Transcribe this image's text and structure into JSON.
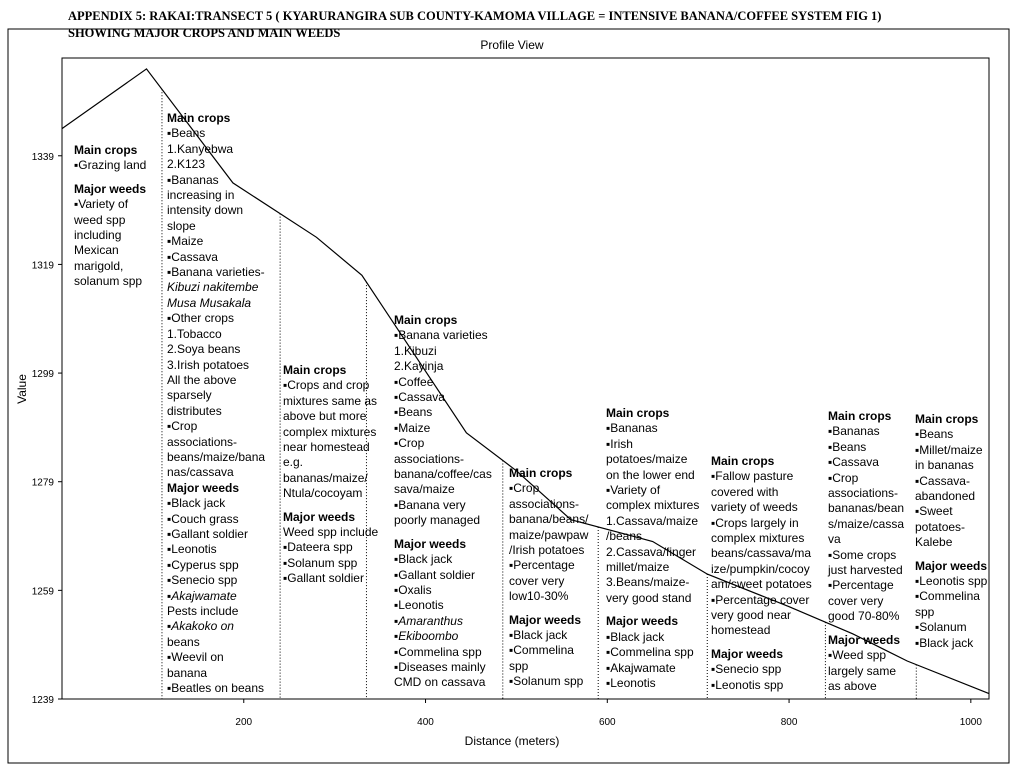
{
  "heading": {
    "line1": "APPENDIX 5: RAKAI:TRANSECT 5 ( KYARURANGIRA SUB COUNTY-KAMOMA VILLAGE = INTENSIVE BANANA/COFFEE SYSTEM FIG 1)",
    "line2": "SHOWING MAJOR CROPS AND MAIN WEEDS"
  },
  "chart_data": {
    "type": "line",
    "title": "Profile View",
    "xlabel": "Distance (meters)",
    "ylabel": "Value",
    "xlim": [
      0,
      1020
    ],
    "ylim": [
      1239,
      1357
    ],
    "x_ticks": [
      200,
      400,
      600,
      800,
      1000
    ],
    "x_tick_labels": [
      "200",
      "400",
      "600",
      "800",
      "1000"
    ],
    "y_ticks": [
      1239,
      1259,
      1279,
      1299,
      1319,
      1339
    ],
    "y_tick_labels": [
      "1239",
      "1259",
      "1279",
      "1299",
      "1319",
      "1339"
    ],
    "grid": false,
    "series": [
      {
        "x": [
          0,
          93,
          188,
          280,
          330,
          445,
          500,
          560,
          650,
          710,
          800,
          870,
          930,
          1020
        ],
        "y": [
          1344,
          1355,
          1334,
          1324,
          1317,
          1288,
          1281,
          1272,
          1268,
          1262,
          1256,
          1251,
          1246,
          1240
        ]
      }
    ],
    "zone_boundaries_x": [
      110,
      240,
      335,
      485,
      590,
      710,
      840,
      940
    ],
    "color": "#000000"
  },
  "zones": [
    {
      "lines": [
        {
          "t": "Main crops",
          "s": "hd"
        },
        {
          "t": "▪Grazing land",
          "s": "it"
        },
        {
          "t": "",
          "s": "gap"
        },
        {
          "t": "Major weeds",
          "s": "hd"
        },
        {
          "t": "▪Variety of",
          "s": "it"
        },
        {
          "t": "weed spp",
          "s": "it"
        },
        {
          "t": "including",
          "s": "it"
        },
        {
          "t": "Mexican",
          "s": "it"
        },
        {
          "t": "marigold,",
          "s": "it"
        },
        {
          "t": "solanum spp",
          "s": "it"
        }
      ]
    },
    {
      "lines": [
        {
          "t": "Main crops",
          "s": "hd"
        },
        {
          "t": "▪Beans",
          "s": "it"
        },
        {
          "t": "1.Kanyebwa",
          "s": "it"
        },
        {
          "t": "2.K123",
          "s": "it"
        },
        {
          "t": "▪Bananas",
          "s": "it"
        },
        {
          "t": "increasing in",
          "s": "it"
        },
        {
          "t": "intensity down",
          "s": "it"
        },
        {
          "t": "slope",
          "s": "it"
        },
        {
          "t": "▪Maize",
          "s": "it"
        },
        {
          "t": "▪Cassava",
          "s": "it"
        },
        {
          "t": "▪Banana varieties-",
          "s": "it"
        },
        {
          "t": "Kibuzi nakitembe",
          "s": "em"
        },
        {
          "t": "Musa Musakala",
          "s": "em"
        },
        {
          "t": "▪Other crops",
          "s": "it"
        },
        {
          "t": "1.Tobacco",
          "s": "it"
        },
        {
          "t": "2.Soya beans",
          "s": "it"
        },
        {
          "t": "3.Irish potatoes",
          "s": "it"
        },
        {
          "t": "All the above",
          "s": "it"
        },
        {
          "t": "sparsely",
          "s": "it"
        },
        {
          "t": "distributes",
          "s": "it"
        },
        {
          "t": "▪Crop",
          "s": "it"
        },
        {
          "t": "associations-",
          "s": "it"
        },
        {
          "t": "beans/maize/bana",
          "s": "it"
        },
        {
          "t": "nas/cassava",
          "s": "it"
        },
        {
          "t": "Major weeds",
          "s": "hd"
        },
        {
          "t": "▪Black jack",
          "s": "it"
        },
        {
          "t": "▪Couch grass",
          "s": "it"
        },
        {
          "t": "▪Gallant soldier",
          "s": "it"
        },
        {
          "t": "▪Leonotis",
          "s": "it"
        },
        {
          "t": "▪Cyperus spp",
          "s": "it"
        },
        {
          "t": "▪Senecio spp",
          "s": "it"
        },
        {
          "t": "▪Akajwamate",
          "s": "em"
        },
        {
          "t": "Pests include",
          "s": "it"
        },
        {
          "t": "▪Akakoko on",
          "s": "em"
        },
        {
          "t": "beans",
          "s": "it"
        },
        {
          "t": "▪Weevil on",
          "s": "it"
        },
        {
          "t": "banana",
          "s": "it"
        },
        {
          "t": "▪Beatles on beans",
          "s": "it"
        }
      ]
    },
    {
      "lines": [
        {
          "t": "Main crops",
          "s": "hd"
        },
        {
          "t": "▪Crops and crop",
          "s": "it"
        },
        {
          "t": "mixtures same as",
          "s": "it"
        },
        {
          "t": "above but more",
          "s": "it"
        },
        {
          "t": "complex mixtures",
          "s": "it"
        },
        {
          "t": "near homestead",
          "s": "it"
        },
        {
          "t": "e.g.",
          "s": "it"
        },
        {
          "t": "bananas/maize/",
          "s": "it"
        },
        {
          "t": "Ntula/cocoyam",
          "s": "it"
        },
        {
          "t": "",
          "s": "gap"
        },
        {
          "t": "Major weeds",
          "s": "hd"
        },
        {
          "t": "Weed spp include",
          "s": "it"
        },
        {
          "t": "▪Dateera spp",
          "s": "it"
        },
        {
          "t": "▪Solanum spp",
          "s": "it"
        },
        {
          "t": "▪Gallant soldier",
          "s": "it"
        }
      ]
    },
    {
      "lines": [
        {
          "t": "Main crops",
          "s": "hd"
        },
        {
          "t": "▪Banana varieties",
          "s": "it"
        },
        {
          "t": "1.Kibuzi",
          "s": "it"
        },
        {
          "t": "2.Kayinja",
          "s": "it"
        },
        {
          "t": "▪Coffee",
          "s": "it"
        },
        {
          "t": "▪Cassava",
          "s": "it"
        },
        {
          "t": "▪Beans",
          "s": "it"
        },
        {
          "t": "▪Maize",
          "s": "it"
        },
        {
          "t": "▪Crop",
          "s": "it"
        },
        {
          "t": "associations-",
          "s": "it"
        },
        {
          "t": "banana/coffee/cas",
          "s": "it"
        },
        {
          "t": "sava/maize",
          "s": "it"
        },
        {
          "t": "▪Banana very",
          "s": "it"
        },
        {
          "t": "poorly managed",
          "s": "it"
        },
        {
          "t": "",
          "s": "gap"
        },
        {
          "t": "Major weeds",
          "s": "hd"
        },
        {
          "t": "▪Black jack",
          "s": "it"
        },
        {
          "t": "▪Gallant soldier",
          "s": "it"
        },
        {
          "t": "▪Oxalis",
          "s": "it"
        },
        {
          "t": "▪Leonotis",
          "s": "it"
        },
        {
          "t": "▪Amaranthus",
          "s": "em"
        },
        {
          "t": "▪Ekiboombo",
          "s": "em"
        },
        {
          "t": "▪Commelina spp",
          "s": "it"
        },
        {
          "t": "▪Diseases mainly",
          "s": "it"
        },
        {
          "t": "CMD on cassava",
          "s": "it"
        }
      ]
    },
    {
      "lines": [
        {
          "t": "Main crops",
          "s": "hd"
        },
        {
          "t": "▪Crop",
          "s": "it"
        },
        {
          "t": "associations-",
          "s": "it"
        },
        {
          "t": "banana/beans/",
          "s": "it"
        },
        {
          "t": "maize/pawpaw",
          "s": "it"
        },
        {
          "t": "/Irish potatoes",
          "s": "it"
        },
        {
          "t": "▪Percentage",
          "s": "it"
        },
        {
          "t": "cover very",
          "s": "it"
        },
        {
          "t": "low10-30%",
          "s": "it"
        },
        {
          "t": "",
          "s": "gap"
        },
        {
          "t": "Major weeds",
          "s": "hd"
        },
        {
          "t": "▪Black jack",
          "s": "it"
        },
        {
          "t": "▪Commelina",
          "s": "it"
        },
        {
          "t": "spp",
          "s": "it"
        },
        {
          "t": "▪Solanum spp",
          "s": "it"
        }
      ]
    },
    {
      "lines": [
        {
          "t": "Main crops",
          "s": "hd"
        },
        {
          "t": "▪Bananas",
          "s": "it"
        },
        {
          "t": "▪Irish",
          "s": "it"
        },
        {
          "t": "potatoes/maize",
          "s": "it"
        },
        {
          "t": "on the lower end",
          "s": "it"
        },
        {
          "t": "▪Variety of",
          "s": "it"
        },
        {
          "t": "complex mixtures",
          "s": "it"
        },
        {
          "t": "1.Cassava/maize",
          "s": "it"
        },
        {
          "t": "/beans",
          "s": "it"
        },
        {
          "t": "2.Cassava/finger",
          "s": "it"
        },
        {
          "t": "millet/maize",
          "s": "it"
        },
        {
          "t": "3.Beans/maize-",
          "s": "it"
        },
        {
          "t": "very good stand",
          "s": "it"
        },
        {
          "t": "",
          "s": "gap"
        },
        {
          "t": "Major weeds",
          "s": "hd"
        },
        {
          "t": "▪Black jack",
          "s": "it"
        },
        {
          "t": "▪Commelina spp",
          "s": "it"
        },
        {
          "t": "▪Akajwamate",
          "s": "it"
        },
        {
          "t": "▪Leonotis",
          "s": "it"
        }
      ]
    },
    {
      "lines": [
        {
          "t": "Main crops",
          "s": "hd"
        },
        {
          "t": "▪Fallow pasture",
          "s": "it"
        },
        {
          "t": "covered with",
          "s": "it"
        },
        {
          "t": "variety of weeds",
          "s": "it"
        },
        {
          "t": "▪Crops largely in",
          "s": "it"
        },
        {
          "t": "complex mixtures",
          "s": "it"
        },
        {
          "t": "beans/cassava/ma",
          "s": "it"
        },
        {
          "t": "ize/pumpkin/cocoy",
          "s": "it"
        },
        {
          "t": "am/sweet potatoes",
          "s": "it"
        },
        {
          "t": "▪Percentage cover",
          "s": "it"
        },
        {
          "t": "very good near",
          "s": "it"
        },
        {
          "t": "homestead",
          "s": "it"
        },
        {
          "t": "",
          "s": "gap"
        },
        {
          "t": "Major weeds",
          "s": "hd"
        },
        {
          "t": "▪Senecio spp",
          "s": "it"
        },
        {
          "t": "▪Leonotis spp",
          "s": "it"
        }
      ]
    },
    {
      "lines": [
        {
          "t": "Main crops",
          "s": "hd"
        },
        {
          "t": "▪Bananas",
          "s": "it"
        },
        {
          "t": "▪Beans",
          "s": "it"
        },
        {
          "t": "▪Cassava",
          "s": "it"
        },
        {
          "t": "▪Crop",
          "s": "it"
        },
        {
          "t": "associations-",
          "s": "it"
        },
        {
          "t": "bananas/bean",
          "s": "it"
        },
        {
          "t": "s/maize/cassa",
          "s": "it"
        },
        {
          "t": "va",
          "s": "it"
        },
        {
          "t": "▪Some crops",
          "s": "it"
        },
        {
          "t": "just harvested",
          "s": "it"
        },
        {
          "t": "▪Percentage",
          "s": "it"
        },
        {
          "t": "cover very",
          "s": "it"
        },
        {
          "t": "good 70-80%",
          "s": "it"
        },
        {
          "t": "",
          "s": "gap"
        },
        {
          "t": "Major weeds",
          "s": "hd"
        },
        {
          "t": "▪Weed spp",
          "s": "it"
        },
        {
          "t": "largely same",
          "s": "it"
        },
        {
          "t": "as above",
          "s": "it"
        }
      ]
    },
    {
      "lines": [
        {
          "t": "Main crops",
          "s": "hd"
        },
        {
          "t": "▪Beans",
          "s": "it"
        },
        {
          "t": "▪Millet/maize",
          "s": "it"
        },
        {
          "t": "in bananas",
          "s": "it"
        },
        {
          "t": "▪Cassava-",
          "s": "it"
        },
        {
          "t": "abandoned",
          "s": "it"
        },
        {
          "t": "▪Sweet",
          "s": "it"
        },
        {
          "t": "potatoes-",
          "s": "it"
        },
        {
          "t": "Kalebe",
          "s": "it"
        },
        {
          "t": "",
          "s": "gap"
        },
        {
          "t": "Major weeds",
          "s": "hd"
        },
        {
          "t": "▪Leonotis spp",
          "s": "it"
        },
        {
          "t": "▪Commelina",
          "s": "it"
        },
        {
          "t": "spp",
          "s": "it"
        },
        {
          "t": "▪Solanum",
          "s": "it"
        },
        {
          "t": "▪Black jack",
          "s": "it"
        }
      ]
    }
  ]
}
